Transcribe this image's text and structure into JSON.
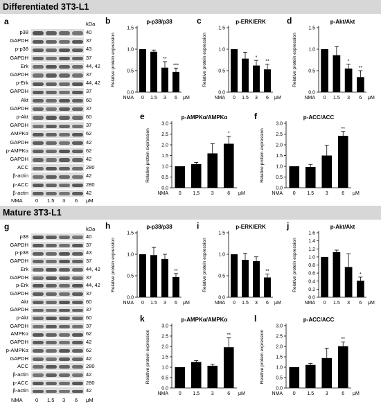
{
  "figure": {
    "section1": {
      "title": "Differentiated 3T3-L1",
      "blot_panel": "a",
      "kda_header": "kDa",
      "lanes": [
        "NMA",
        "0",
        "1.5",
        "3",
        "6",
        "μM"
      ],
      "rows": [
        {
          "name": "p38",
          "kda": "40"
        },
        {
          "name": "GAPDH",
          "kda": "37"
        },
        {
          "name": "p-p38",
          "kda": "43"
        },
        {
          "name": "GAPDH",
          "kda": "37"
        },
        {
          "name": "Erk",
          "kda": "44, 42"
        },
        {
          "name": "GAPDH",
          "kda": "37"
        },
        {
          "name": "p-Erk",
          "kda": "44, 42"
        },
        {
          "name": "GAPDH",
          "kda": "37"
        },
        {
          "name": "Akt",
          "kda": "60"
        },
        {
          "name": "GAPDH",
          "kda": "37"
        },
        {
          "name": "p-Akt",
          "kda": "60"
        },
        {
          "name": "GAPDH",
          "kda": "37"
        },
        {
          "name": "AMPKα",
          "kda": "62"
        },
        {
          "name": "GAPDH",
          "kda": "42"
        },
        {
          "name": "p-AMPKα",
          "kda": "62"
        },
        {
          "name": "GAPDH",
          "kda": "42"
        },
        {
          "name": "ACC",
          "kda": "280"
        },
        {
          "name": "β-actin",
          "kda": "42"
        },
        {
          "name": "p-ACC",
          "kda": "280"
        },
        {
          "name": "β-actin",
          "kda": "42"
        }
      ]
    },
    "section2": {
      "title": "Mature 3T3-L1",
      "blot_panel": "g",
      "kda_header": "kDa",
      "lanes": [
        "NMA",
        "0",
        "1.5",
        "3",
        "6",
        "μM"
      ],
      "rows": [
        {
          "name": "p38",
          "kda": "40"
        },
        {
          "name": "GAPDH",
          "kda": "37"
        },
        {
          "name": "p-p38",
          "kda": "43"
        },
        {
          "name": "GAPDH",
          "kda": "37"
        },
        {
          "name": "Erk",
          "kda": "44, 42"
        },
        {
          "name": "GAPDH",
          "kda": "37"
        },
        {
          "name": "p-Erk",
          "kda": "44, 42"
        },
        {
          "name": "GAPDH",
          "kda": "37"
        },
        {
          "name": "Akt",
          "kda": "60"
        },
        {
          "name": "GAPDH",
          "kda": "37"
        },
        {
          "name": "p-Akt",
          "kda": "60"
        },
        {
          "name": "GAPDH",
          "kda": "37"
        },
        {
          "name": "AMPKα",
          "kda": "62"
        },
        {
          "name": "GAPDH",
          "kda": "42"
        },
        {
          "name": "p-AMPKα",
          "kda": "62"
        },
        {
          "name": "GAPDH",
          "kda": "42"
        },
        {
          "name": "ACC",
          "kda": "280"
        },
        {
          "name": "β-actin",
          "kda": "42"
        },
        {
          "name": "p-ACC",
          "kda": "280"
        },
        {
          "name": "β-actin",
          "kda": "42"
        }
      ]
    }
  },
  "chart_data": [
    {
      "panel": "b",
      "type": "bar",
      "title": "p-p38/p38",
      "ylabel": "Relative protein expression",
      "xlabel": "NMA",
      "unit": "μM",
      "categories": [
        "0",
        "1.5",
        "3",
        "6"
      ],
      "values": [
        1.0,
        0.94,
        0.57,
        0.47
      ],
      "errors": [
        0,
        0.04,
        0.14,
        0.09
      ],
      "significance": [
        "",
        "",
        "**",
        "***"
      ],
      "ylim": [
        0,
        1.5
      ],
      "yticks": [
        "0.0",
        "0.5",
        "1.0",
        "1.5"
      ]
    },
    {
      "panel": "c",
      "type": "bar",
      "title": "p-ERK/ERK",
      "ylabel": "Relative protein expression",
      "xlabel": "NMA",
      "unit": "μM",
      "categories": [
        "0",
        "1.5",
        "3",
        "6"
      ],
      "values": [
        1.0,
        0.78,
        0.62,
        0.53
      ],
      "errors": [
        0,
        0.15,
        0.12,
        0.12
      ],
      "significance": [
        "",
        "",
        "*",
        "**"
      ],
      "ylim": [
        0,
        1.5
      ],
      "yticks": [
        "0.0",
        "0.5",
        "1.0",
        "1.5"
      ]
    },
    {
      "panel": "d",
      "type": "bar",
      "title": "p-Akt/Akt",
      "ylabel": "Relative protein expression",
      "xlabel": "NMA",
      "unit": "μM",
      "categories": [
        "0",
        "1.5",
        "3",
        "6"
      ],
      "values": [
        1.0,
        0.86,
        0.55,
        0.35
      ],
      "errors": [
        0,
        0.2,
        0.1,
        0.15
      ],
      "significance": [
        "",
        "",
        "*",
        "**"
      ],
      "ylim": [
        0,
        1.5
      ],
      "yticks": [
        "0.0",
        "0.5",
        "1.0",
        "1.5"
      ]
    },
    {
      "panel": "e",
      "type": "bar",
      "title": "p-AMPKα/AMPKα",
      "ylabel": "Relative protein expression",
      "xlabel": "NMA",
      "unit": "μM",
      "categories": [
        "0",
        "1.5",
        "3",
        "6"
      ],
      "values": [
        1.0,
        1.1,
        1.6,
        2.05
      ],
      "errors": [
        0,
        0.08,
        0.45,
        0.35
      ],
      "significance": [
        "",
        "",
        "",
        "*"
      ],
      "ylim": [
        0,
        3.0
      ],
      "yticks": [
        "0.0",
        "0.5",
        "1.0",
        "1.5",
        "2.0",
        "2.5",
        "3.0"
      ]
    },
    {
      "panel": "f",
      "type": "bar",
      "title": "p-ACC/ACC",
      "ylabel": "Relative protein expression",
      "xlabel": "NMA",
      "unit": "μM",
      "categories": [
        "0",
        "1.5",
        "3",
        "6"
      ],
      "values": [
        1.0,
        0.97,
        1.5,
        2.42
      ],
      "errors": [
        0,
        0.12,
        0.48,
        0.2
      ],
      "significance": [
        "",
        "",
        "",
        "**"
      ],
      "ylim": [
        0,
        3.0
      ],
      "yticks": [
        "0.0",
        "0.5",
        "1.0",
        "1.5",
        "2.0",
        "2.5",
        "3.0"
      ]
    },
    {
      "panel": "h",
      "type": "bar",
      "title": "p-p38/p38",
      "ylabel": "Relative protein expression",
      "xlabel": "NMA",
      "unit": "μM",
      "categories": [
        "0",
        "1.5",
        "3",
        "6"
      ],
      "values": [
        1.0,
        0.98,
        0.89,
        0.47
      ],
      "errors": [
        0,
        0.18,
        0.11,
        0.08
      ],
      "significance": [
        "",
        "",
        "",
        "**"
      ],
      "ylim": [
        0,
        1.5
      ],
      "yticks": [
        "0.0",
        "0.5",
        "1.0",
        "1.5"
      ]
    },
    {
      "panel": "i",
      "type": "bar",
      "title": "p-ERK/ERK",
      "ylabel": "Relative protein expression",
      "xlabel": "NMA",
      "unit": "μM",
      "categories": [
        "0",
        "1.5",
        "3",
        "6"
      ],
      "values": [
        1.0,
        0.87,
        0.84,
        0.46
      ],
      "errors": [
        0,
        0.15,
        0.1,
        0.08
      ],
      "significance": [
        "",
        "",
        "",
        "**"
      ],
      "ylim": [
        0,
        1.5
      ],
      "yticks": [
        "0.0",
        "0.5",
        "1.0",
        "1.5"
      ]
    },
    {
      "panel": "j",
      "type": "bar",
      "title": "p-Akt/Akt",
      "ylabel": "Relative protein expression",
      "xlabel": "NMA",
      "unit": "μM",
      "categories": [
        "0",
        "1.5",
        "3",
        "6"
      ],
      "values": [
        1.0,
        1.12,
        0.75,
        0.41
      ],
      "errors": [
        0,
        0.05,
        0.33,
        0.09
      ],
      "significance": [
        "",
        "",
        "",
        "*"
      ],
      "ylim": [
        0,
        1.6
      ],
      "yticks": [
        "0.0",
        "0.2",
        "0.4",
        "0.6",
        "0.8",
        "1.0",
        "1.2",
        "1.4",
        "1.6"
      ]
    },
    {
      "panel": "k",
      "type": "bar",
      "title": "p-AMPKα/AMPKα",
      "ylabel": "Relative protein expression",
      "xlabel": "NMA",
      "unit": "μM",
      "categories": [
        "0",
        "1.5",
        "3",
        "6"
      ],
      "values": [
        1.0,
        1.25,
        1.07,
        1.96
      ],
      "errors": [
        0,
        0.07,
        0.07,
        0.45
      ],
      "significance": [
        "",
        "",
        "",
        "**"
      ],
      "ylim": [
        0,
        3.0
      ],
      "yticks": [
        "0.0",
        "0.5",
        "1.0",
        "1.5",
        "2.0",
        "2.5",
        "3.0"
      ]
    },
    {
      "panel": "l",
      "type": "bar",
      "title": "p-ACC/ACC",
      "ylabel": "Relative protein expression",
      "xlabel": "NMA",
      "unit": "μM",
      "categories": [
        "0",
        "1.5",
        "3",
        "6"
      ],
      "values": [
        1.0,
        1.11,
        1.44,
        2.01
      ],
      "errors": [
        0,
        0.07,
        0.48,
        0.2
      ],
      "significance": [
        "",
        "",
        "",
        "**"
      ],
      "ylim": [
        0,
        3.0
      ],
      "yticks": [
        "0.0",
        "0.5",
        "1.0",
        "1.5",
        "2.0",
        "2.5",
        "3.0"
      ]
    }
  ]
}
